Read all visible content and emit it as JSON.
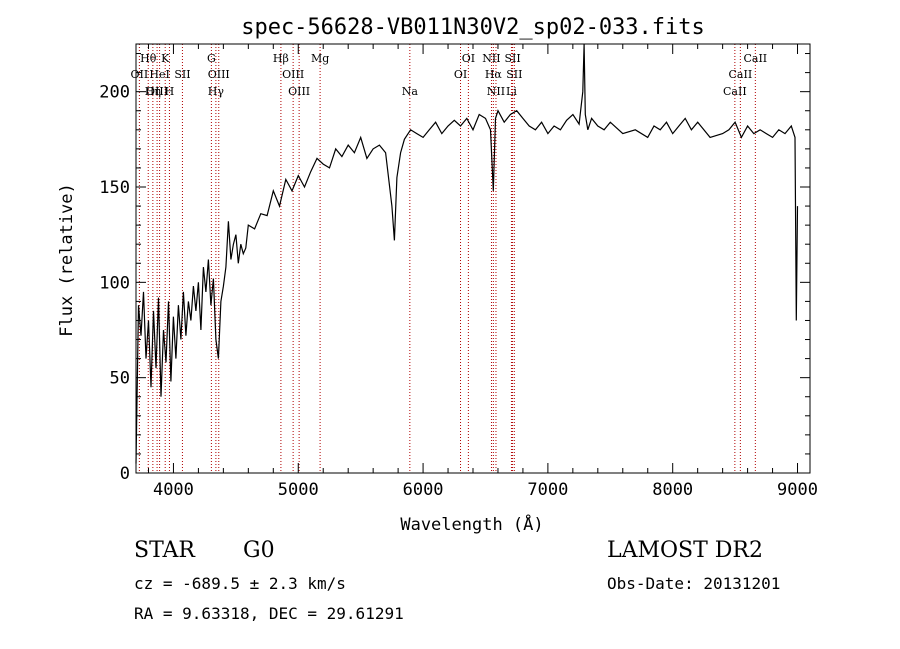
{
  "chart_data": {
    "type": "line",
    "title": "spec-56628-VB011N30V2_sp02-033.fits",
    "xlabel": "Wavelength (Å)",
    "ylabel": "Flux (relative)",
    "xlim": [
      3700,
      9100
    ],
    "ylim": [
      0,
      225
    ],
    "xticks": [
      4000,
      5000,
      6000,
      7000,
      8000,
      9000
    ],
    "yticks": [
      0,
      50,
      100,
      150,
      200
    ],
    "grid": false,
    "series": [
      {
        "x": [
          3700,
          3720,
          3740,
          3760,
          3780,
          3800,
          3820,
          3840,
          3860,
          3880,
          3900,
          3920,
          3940,
          3960,
          3980,
          4000,
          4020,
          4040,
          4060,
          4080,
          4100,
          4120,
          4140,
          4160,
          4180,
          4200,
          4220,
          4240,
          4260,
          4280,
          4300,
          4320,
          4340,
          4360,
          4380,
          4400,
          4420,
          4440,
          4460,
          4480,
          4500,
          4520,
          4540,
          4560,
          4580,
          4600,
          4650,
          4700,
          4750,
          4800,
          4850,
          4900,
          4950,
          5000,
          5050,
          5100,
          5150,
          5200,
          5250,
          5300,
          5350,
          5400,
          5450,
          5500,
          5550,
          5600,
          5650,
          5700,
          5750,
          5770,
          5790,
          5820,
          5850,
          5900,
          5950,
          6000,
          6050,
          6100,
          6150,
          6200,
          6250,
          6300,
          6350,
          6400,
          6450,
          6500,
          6540,
          6563,
          6580,
          6600,
          6650,
          6700,
          6750,
          6800,
          6850,
          6900,
          6950,
          7000,
          7050,
          7100,
          7150,
          7200,
          7250,
          7280,
          7290,
          7300,
          7320,
          7350,
          7400,
          7450,
          7500,
          7600,
          7700,
          7800,
          7850,
          7900,
          7950,
          8000,
          8050,
          8100,
          8150,
          8200,
          8300,
          8400,
          8450,
          8500,
          8550,
          8600,
          8650,
          8700,
          8750,
          8800,
          8850,
          8900,
          8950,
          8980,
          8990,
          9000
        ],
        "y": [
          5,
          88,
          72,
          95,
          60,
          80,
          45,
          85,
          55,
          92,
          40,
          75,
          58,
          90,
          48,
          82,
          60,
          88,
          70,
          95,
          72,
          90,
          80,
          98,
          85,
          100,
          75,
          108,
          95,
          112,
          88,
          102,
          70,
          60,
          90,
          98,
          108,
          132,
          112,
          120,
          125,
          110,
          120,
          115,
          118,
          130,
          128,
          136,
          135,
          148,
          140,
          154,
          148,
          156,
          150,
          158,
          165,
          162,
          160,
          170,
          166,
          172,
          168,
          176,
          165,
          170,
          172,
          168,
          140,
          122,
          155,
          168,
          175,
          180,
          178,
          176,
          180,
          184,
          178,
          182,
          185,
          182,
          186,
          180,
          188,
          186,
          180,
          148,
          186,
          190,
          184,
          188,
          190,
          186,
          182,
          180,
          184,
          178,
          182,
          180,
          185,
          188,
          183,
          200,
          240,
          188,
          180,
          186,
          182,
          180,
          184,
          178,
          180,
          176,
          182,
          180,
          184,
          178,
          182,
          186,
          180,
          184,
          176,
          178,
          180,
          184,
          176,
          182,
          178,
          180,
          178,
          176,
          180,
          178,
          182,
          176,
          80,
          140
        ]
      }
    ],
    "emission_lines": [
      {
        "name": "Hθ",
        "x": 3798,
        "row": 0
      },
      {
        "name": "OII",
        "x": 3727,
        "row": 1
      },
      {
        "name": "OIII",
        "x": 3869,
        "row": 2
      },
      {
        "name": "K",
        "x": 3934,
        "row": 0
      },
      {
        "name": "HeI",
        "x": 3889,
        "row": 1
      },
      {
        "name": "Hη",
        "x": 3835,
        "row": 2
      },
      {
        "name": "SII",
        "x": 4072,
        "row": 1
      },
      {
        "name": "H",
        "x": 3968,
        "row": 2
      },
      {
        "name": "G",
        "x": 4304,
        "row": 0
      },
      {
        "name": "OIII",
        "x": 4363,
        "row": 1
      },
      {
        "name": "Hγ",
        "x": 4340,
        "row": 2
      },
      {
        "name": "Hβ",
        "x": 4861,
        "row": 0
      },
      {
        "name": "OIII",
        "x": 4959,
        "row": 1
      },
      {
        "name": "OIII",
        "x": 5007,
        "row": 2
      },
      {
        "name": "Mg",
        "x": 5175,
        "row": 0
      },
      {
        "name": "Na",
        "x": 5894,
        "row": 2
      },
      {
        "name": "OI",
        "x": 6363,
        "row": 0
      },
      {
        "name": "OI",
        "x": 6300,
        "row": 1
      },
      {
        "name": "NII",
        "x": 6548,
        "row": 0
      },
      {
        "name": "Hα",
        "x": 6563,
        "row": 1
      },
      {
        "name": "NII",
        "x": 6584,
        "row": 2
      },
      {
        "name": "SII",
        "x": 6717,
        "row": 0
      },
      {
        "name": "SII",
        "x": 6731,
        "row": 1
      },
      {
        "name": "Li",
        "x": 6708,
        "row": 2
      },
      {
        "name": "CaII",
        "x": 8662,
        "row": 0
      },
      {
        "name": "CaII",
        "x": 8542,
        "row": 1
      },
      {
        "name": "CaII",
        "x": 8498,
        "row": 2
      }
    ]
  },
  "info": {
    "class": "STAR",
    "subclass": "G0",
    "survey": "LAMOST DR2",
    "cz": "cz = -689.5 ± 2.3 km/s",
    "obs_date": "Obs-Date: 20131201",
    "radec": "RA =   9.63318, DEC =  29.61291"
  }
}
